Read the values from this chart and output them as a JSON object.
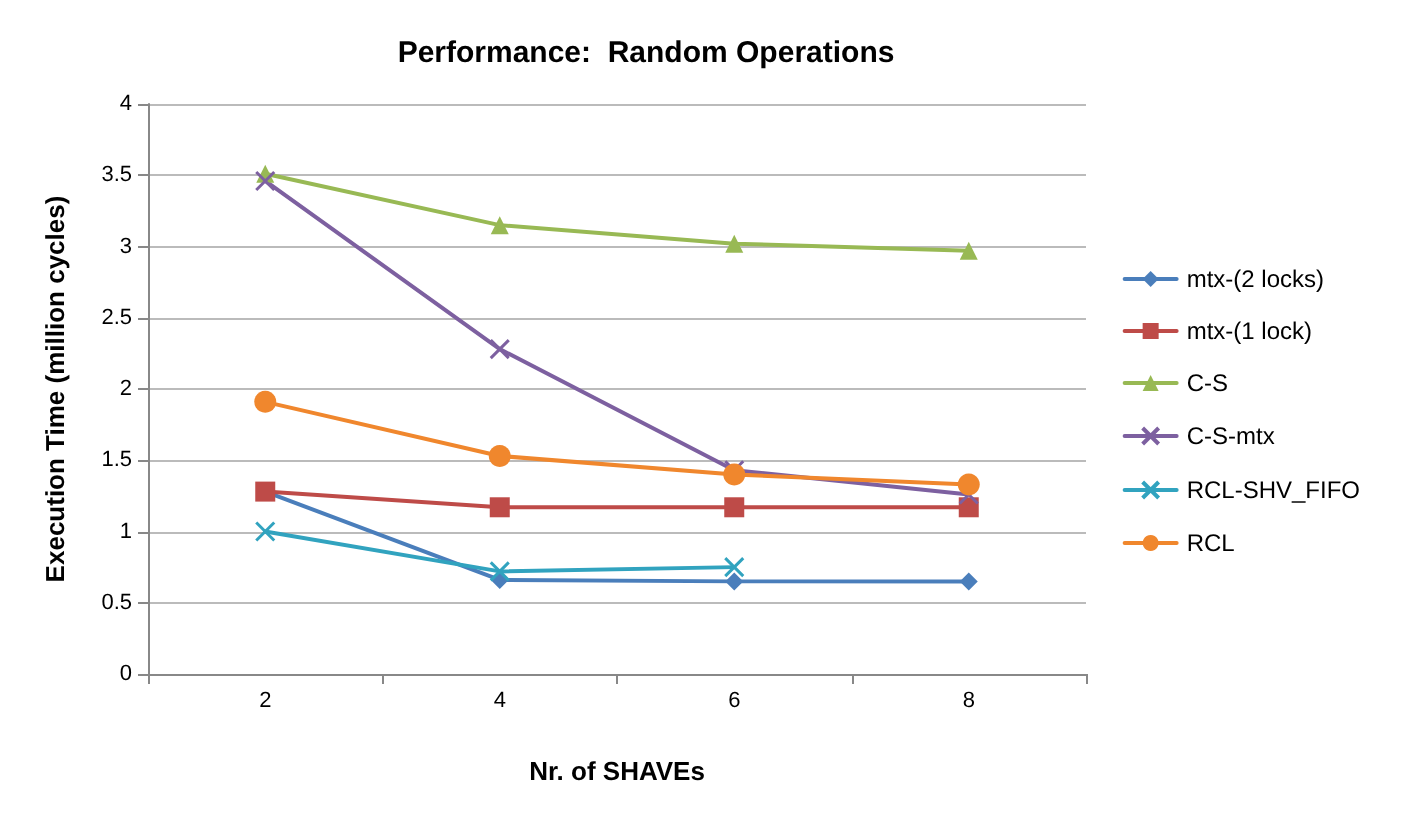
{
  "chart_data": {
    "type": "line",
    "title": "Performance:  Random Operations",
    "xlabel": "Nr. of SHAVEs",
    "ylabel": "Execution Time (million cycles)",
    "categories": [
      "2",
      "4",
      "6",
      "8"
    ],
    "series": [
      {
        "name": "mtx-(2 locks)",
        "color": "#4a7ebb",
        "marker": "diamond",
        "values": [
          1.28,
          0.66,
          0.65,
          0.65
        ]
      },
      {
        "name": "mtx-(1 lock)",
        "color": "#be4b48",
        "marker": "square",
        "values": [
          1.28,
          1.17,
          1.17,
          1.17
        ]
      },
      {
        "name": "C-S",
        "color": "#98b954",
        "marker": "triangle",
        "values": [
          3.51,
          3.15,
          3.02,
          2.97
        ]
      },
      {
        "name": "C-S-mtx",
        "color": "#7d60a0",
        "marker": "cross",
        "values": [
          3.46,
          2.28,
          1.43,
          1.26
        ]
      },
      {
        "name": "RCL-SHV_FIFO",
        "color": "#31a3bf",
        "marker": "cross",
        "values": [
          1.0,
          0.72,
          0.75,
          null
        ]
      },
      {
        "name": "RCL",
        "color": "#f0872d",
        "marker": "circle",
        "values": [
          1.91,
          1.53,
          1.4,
          1.33
        ]
      }
    ],
    "ylim": [
      0,
      4
    ],
    "yticks": [
      0,
      0.5,
      1,
      1.5,
      2,
      2.5,
      3,
      3.5,
      4
    ],
    "grid": "y",
    "legend": "right"
  }
}
